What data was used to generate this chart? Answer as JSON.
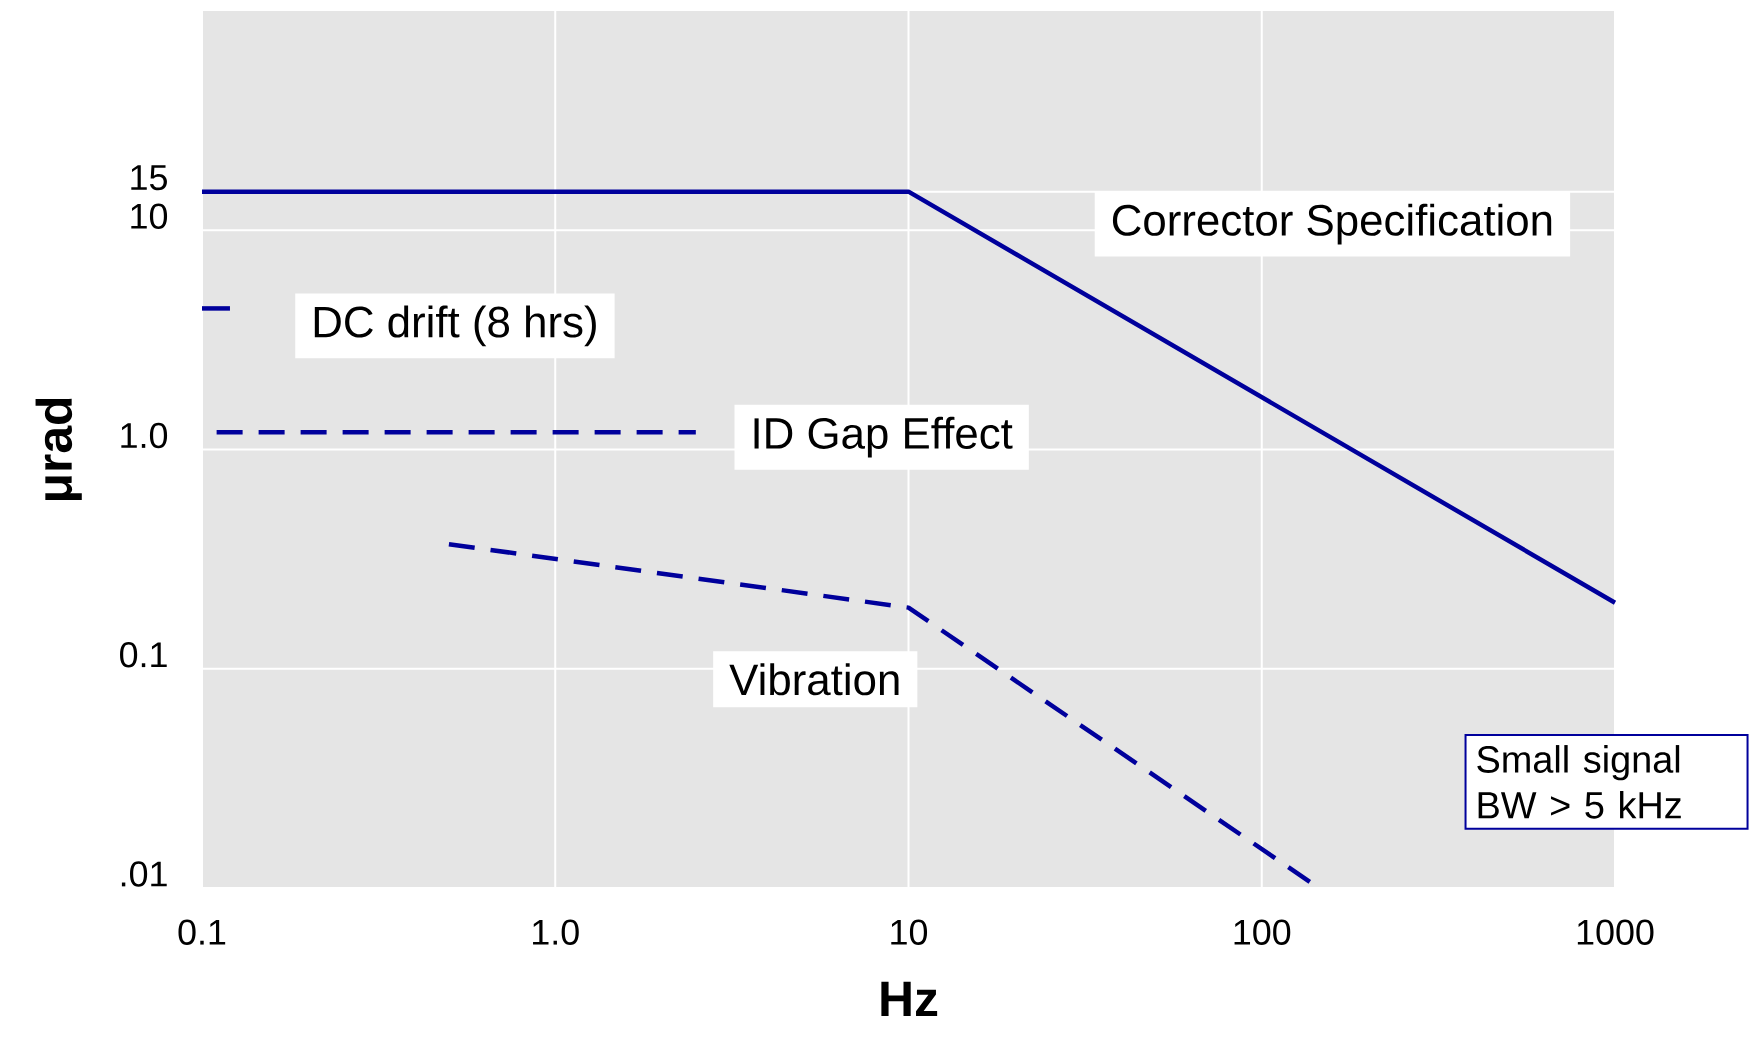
{
  "chart_data": {
    "type": "line",
    "xlabel": "Hz",
    "ylabel": "μrad",
    "log": "xy",
    "grid": true,
    "legend": false,
    "marker": "none",
    "xlim": [
      0.1,
      1000
    ],
    "xticks": [
      0.1,
      {
        "value": 1,
        "label": "1.0"
      },
      10,
      100,
      1000
    ],
    "ylim": [
      0.01,
      100
    ],
    "yticks": [
      {
        "value": 0.01,
        "label": ".01"
      },
      0.1,
      {
        "value": 1,
        "label": "1.0"
      },
      10,
      15
    ],
    "series": [
      {
        "name": "Corrector Specification",
        "color": "#00009c",
        "line_style": "solid",
        "x": [
          0.1,
          10,
          1000
        ],
        "values": [
          15,
          15,
          0.2
        ]
      },
      {
        "name": "DC drift (8 hrs)",
        "color": "#00009c",
        "line_style": "solid",
        "x": [
          0.1,
          0.12
        ],
        "values": [
          4.4,
          4.4
        ]
      },
      {
        "name": "ID Gap Effect",
        "color": "#00009c",
        "line_style": "dashed",
        "x": [
          0.11,
          2.5
        ],
        "values": [
          1.2,
          1.2
        ]
      },
      {
        "name": "Vibration",
        "color": "#00009c",
        "line_style": "dashed",
        "x": [
          0.5,
          10,
          145
        ],
        "values": [
          0.37,
          0.19,
          0.01
        ]
      }
    ],
    "annotations": [
      "Small signal BW > 5 kHz"
    ]
  }
}
